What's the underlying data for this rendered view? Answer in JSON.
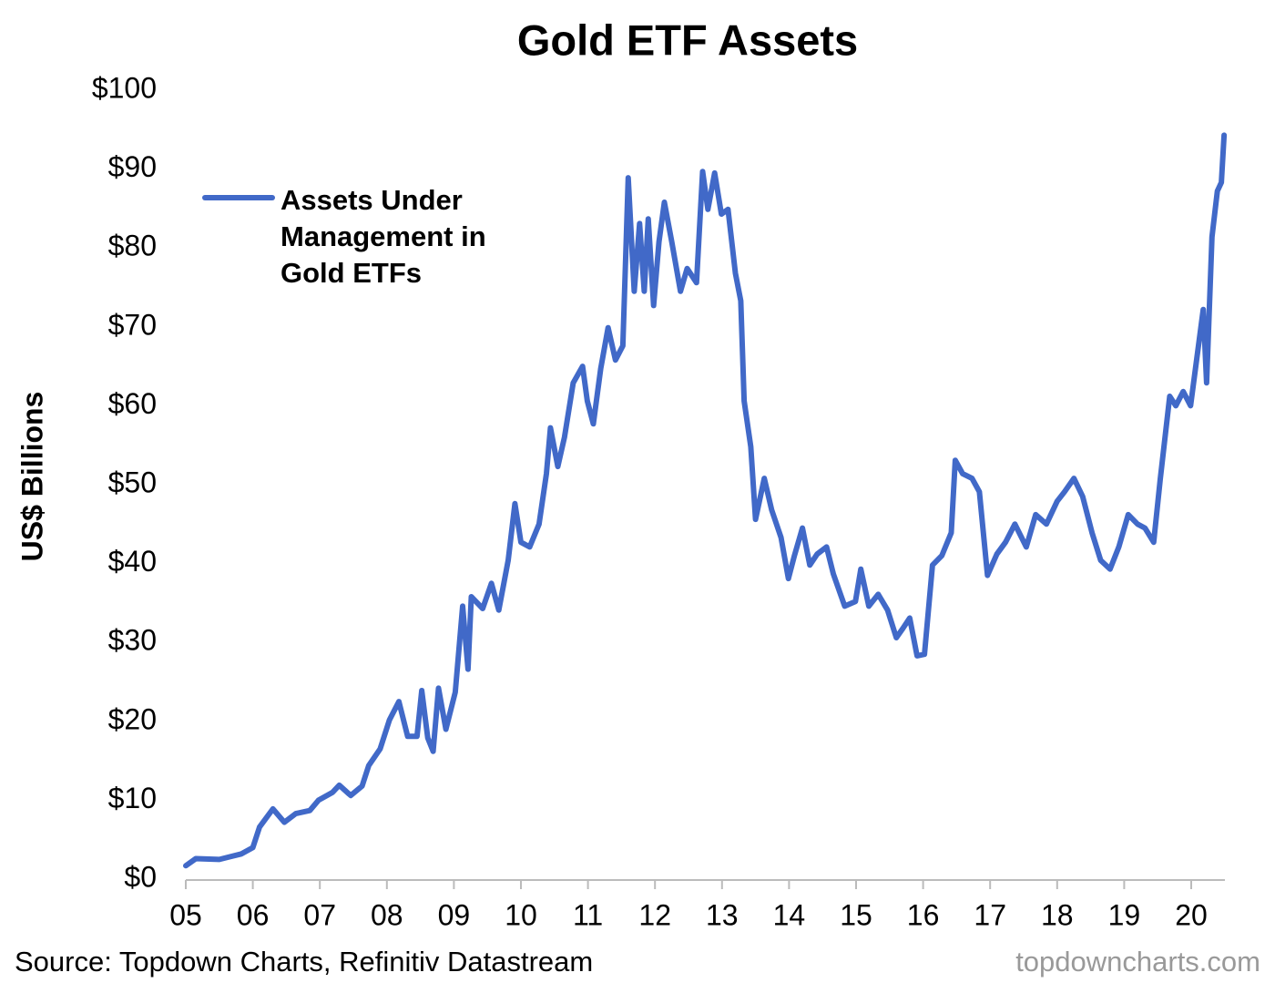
{
  "chart_data": {
    "type": "line",
    "title": "Gold ETF Assets",
    "y_label": "US$ Billions",
    "source": "Source: Topdown Charts, Refinitiv Datastream",
    "watermark": "topdowncharts.com",
    "x": [
      5.0,
      5.15,
      5.5,
      5.83,
      6.0,
      6.1,
      6.3,
      6.47,
      6.64,
      6.85,
      6.98,
      7.19,
      7.29,
      7.46,
      7.63,
      7.73,
      7.9,
      8.04,
      8.18,
      8.31,
      8.45,
      8.52,
      8.61,
      8.69,
      8.77,
      8.88,
      9.02,
      9.13,
      9.21,
      9.26,
      9.43,
      9.56,
      9.67,
      9.81,
      9.91,
      10.0,
      10.13,
      10.27,
      10.38,
      10.44,
      10.55,
      10.65,
      10.78,
      10.92,
      10.99,
      11.08,
      11.19,
      11.3,
      11.41,
      11.52,
      11.6,
      11.69,
      11.77,
      11.84,
      11.9,
      11.98,
      12.06,
      12.14,
      12.25,
      12.38,
      12.48,
      12.62,
      12.71,
      12.79,
      12.89,
      12.99,
      13.09,
      13.2,
      13.28,
      13.33,
      13.43,
      13.5,
      13.63,
      13.74,
      13.88,
      13.99,
      14.08,
      14.2,
      14.31,
      14.42,
      14.56,
      14.66,
      14.83,
      14.99,
      15.07,
      15.19,
      15.33,
      15.47,
      15.6,
      15.7,
      15.8,
      15.91,
      16.02,
      16.14,
      16.28,
      16.42,
      16.48,
      16.59,
      16.73,
      16.84,
      16.96,
      17.1,
      17.23,
      17.37,
      17.54,
      17.68,
      17.84,
      18.0,
      18.11,
      18.25,
      18.38,
      18.52,
      18.65,
      18.79,
      18.92,
      19.06,
      19.2,
      19.31,
      19.44,
      19.54,
      19.68,
      19.77,
      19.88,
      19.99,
      20.08,
      20.18,
      20.23,
      20.31,
      20.39,
      20.45,
      20.49
    ],
    "series": [
      {
        "name": "Assets Under Management in Gold ETFs",
        "color": "#4169c8",
        "values": [
          1.7,
          2.6,
          2.5,
          3.2,
          4.0,
          6.6,
          8.9,
          7.2,
          8.3,
          8.7,
          10,
          11,
          11.9,
          10.6,
          11.8,
          14.4,
          16.5,
          20.2,
          22.5,
          18.1,
          18.1,
          23.9,
          17.9,
          16.2,
          24.2,
          19,
          23.7,
          34.6,
          26.6,
          35.8,
          34.3,
          37.5,
          34.1,
          40.4,
          47.6,
          42.7,
          42.1,
          45,
          51.4,
          57.2,
          52.3,
          56,
          62.9,
          65,
          60.6,
          57.7,
          64.7,
          69.9,
          65.8,
          67.6,
          88.9,
          74.5,
          83.1,
          74.5,
          83.7,
          72.7,
          80.8,
          85.8,
          80.8,
          74.5,
          77.4,
          75.6,
          89.7,
          84.9,
          89.5,
          84.3,
          84.9,
          76.8,
          73.3,
          60.6,
          54.8,
          45.6,
          50.8,
          46.8,
          43.3,
          38.1,
          41,
          44.5,
          39.8,
          41.2,
          42.1,
          38.7,
          34.6,
          35.2,
          39.3,
          34.6,
          36.1,
          34.1,
          30.6,
          31.8,
          33.1,
          28.3,
          28.5,
          39.8,
          41,
          43.9,
          53.1,
          51.4,
          50.8,
          49.1,
          38.5,
          41.2,
          42.7,
          45,
          42.1,
          46.2,
          45,
          47.9,
          49.1,
          50.8,
          48.5,
          43.9,
          40.4,
          39.3,
          42.1,
          46.2,
          45,
          44.5,
          42.7,
          50.8,
          61.2,
          60,
          61.8,
          60,
          65.8,
          72.2,
          62.9,
          81.4,
          87.2,
          88.3,
          94.3
        ]
      }
    ],
    "xlim": [
      5,
      20.5
    ],
    "xticks": [
      {
        "value": 5,
        "label": "05"
      },
      {
        "value": 6,
        "label": "06"
      },
      {
        "value": 7,
        "label": "07"
      },
      {
        "value": 8,
        "label": "08"
      },
      {
        "value": 9,
        "label": "09"
      },
      10,
      11,
      12,
      13,
      14,
      15,
      16,
      17,
      18,
      19,
      20
    ],
    "ylim": [
      0,
      100
    ],
    "yticks": [
      {
        "value": 0,
        "label": "$0"
      },
      {
        "value": 10,
        "label": "$10"
      },
      {
        "value": 20,
        "label": "$20"
      },
      {
        "value": 30,
        "label": "$30"
      },
      {
        "value": 40,
        "label": "$40"
      },
      {
        "value": 50,
        "label": "$50"
      },
      {
        "value": 60,
        "label": "$60"
      },
      {
        "value": 70,
        "label": "$70"
      },
      {
        "value": 80,
        "label": "$80"
      },
      {
        "value": 90,
        "label": "$90"
      },
      {
        "value": 100,
        "label": "$100"
      }
    ],
    "grid": false
  }
}
